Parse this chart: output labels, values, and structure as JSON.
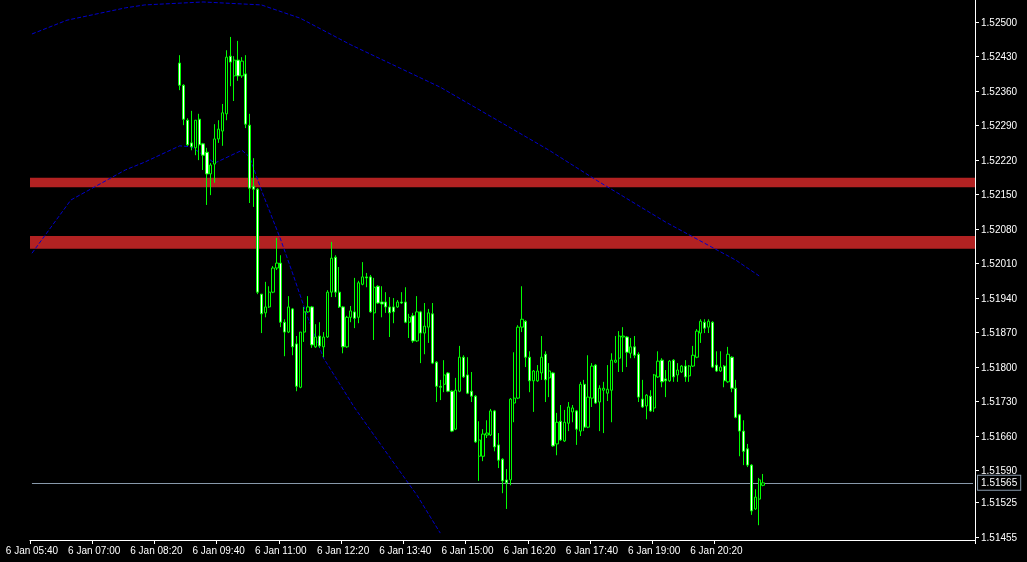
{
  "chart_data": {
    "type": "candlestick",
    "color": "#00ff00",
    "categories": [
      "6 Jan 05:40",
      null,
      null,
      null,
      null,
      null,
      null,
      null,
      null,
      null,
      null,
      null,
      null,
      null,
      null,
      null,
      "6 Jan 07:00",
      null,
      null,
      null,
      null,
      null,
      null,
      null,
      null,
      null,
      null,
      null,
      null,
      null,
      null,
      null,
      "6 Jan 08:20",
      null,
      null,
      null,
      null,
      null,
      null,
      null,
      null,
      null,
      null,
      null,
      null,
      null,
      null,
      null,
      "6 Jan 09:40",
      null,
      null,
      null,
      null,
      null,
      null,
      null,
      null,
      null,
      null,
      null,
      null,
      null,
      null,
      null,
      "6 Jan 11:00",
      null,
      null,
      null,
      null,
      null,
      null,
      null,
      null,
      null,
      null,
      null,
      null,
      null,
      null,
      null,
      "6 Jan 12:20",
      null,
      null,
      null,
      null,
      null,
      null,
      null,
      null,
      null,
      null,
      null,
      null,
      null,
      null,
      null,
      "6 Jan 13:40",
      null,
      null,
      null,
      null,
      null,
      null,
      null,
      null,
      null,
      null,
      null,
      null,
      null,
      null,
      null,
      "6 Jan 15:00",
      null,
      null,
      null,
      null,
      null,
      null,
      null,
      null,
      null,
      null,
      null,
      null,
      null,
      null,
      null,
      "6 Jan 16:20",
      null,
      null,
      null,
      null,
      null,
      null,
      null,
      null,
      null,
      null,
      null,
      null,
      null,
      null,
      null,
      "6 Jan 17:40",
      null,
      null,
      null,
      null,
      null,
      null,
      null,
      null,
      null,
      null,
      null,
      null,
      null,
      null,
      null,
      "6 Jan 19:00",
      null,
      null,
      null,
      null,
      null,
      null,
      null,
      null,
      null,
      null,
      null,
      null,
      null,
      null,
      null,
      "6 Jan 20:20",
      null,
      null,
      null,
      null,
      null,
      null,
      null,
      null,
      null,
      null,
      null,
      null,
      null,
      null,
      null,
      null,
      null,
      null,
      null,
      null,
      null,
      null,
      null,
      null,
      null,
      null,
      null,
      null,
      null,
      null,
      null,
      null,
      null,
      null,
      null,
      null,
      null,
      null,
      null,
      null,
      null,
      null,
      null,
      null,
      null,
      null,
      null,
      null,
      null,
      null,
      null,
      null,
      null,
      null,
      null,
      null,
      null,
      null,
      null,
      null,
      null,
      null,
      null,
      null,
      null,
      null
    ],
    "ohlc": [
      null,
      null,
      null,
      null,
      null,
      null,
      null,
      null,
      null,
      null,
      null,
      null,
      null,
      null,
      null,
      null,
      null,
      null,
      null,
      null,
      null,
      null,
      null,
      null,
      null,
      null,
      null,
      null,
      null,
      null,
      null,
      null,
      null,
      null,
      null,
      null,
      null,
      null,
      [
        1.52417,
        1.52433,
        1.52362,
        1.52372
      ],
      [
        1.52372,
        1.52374,
        1.52291,
        1.52303
      ],
      [
        1.52301,
        1.52305,
        1.52249,
        1.52251
      ],
      [
        1.52255,
        1.5232,
        1.5224,
        1.52247
      ],
      [
        1.52245,
        1.52301,
        1.5223,
        1.52301
      ],
      [
        1.52303,
        1.52314,
        1.5222,
        1.52251
      ],
      [
        1.52253,
        1.52255,
        1.522,
        1.5223
      ],
      [
        1.52236,
        1.52245,
        1.52129,
        1.52192
      ],
      [
        1.52192,
        1.52214,
        1.52149,
        1.5221
      ],
      [
        1.52212,
        1.52293,
        1.52174,
        1.52263
      ],
      [
        1.52263,
        1.52301,
        1.52255,
        1.52283
      ],
      [
        1.52279,
        1.52334,
        1.52249,
        1.52316
      ],
      [
        1.52314,
        1.52443,
        1.52301,
        1.52429
      ],
      [
        1.52431,
        1.5247,
        1.5237,
        1.52419
      ],
      [
        1.52391,
        1.52431,
        1.5234,
        1.52423
      ],
      [
        1.52423,
        1.52462,
        1.52381,
        1.52391
      ],
      [
        1.52391,
        1.52429,
        1.52387,
        1.52421
      ],
      [
        1.52395,
        1.52433,
        1.52285,
        1.52293
      ],
      [
        1.52291,
        1.52314,
        1.52133,
        1.52163
      ],
      [
        1.52167,
        1.52224,
        1.52125,
        1.52161
      ],
      [
        1.52161,
        1.52163,
        1.51948,
        1.51952
      ],
      [
        1.51948,
        1.51948,
        1.51869,
        1.51908
      ],
      [
        1.5191,
        1.51973,
        1.51901,
        1.51922
      ],
      [
        1.51922,
        1.51964,
        1.5192,
        1.51952
      ],
      [
        1.51952,
        1.52005,
        1.5195,
        1.52001
      ],
      [
        1.52001,
        1.52062,
        1.51997,
        1.52011
      ],
      [
        1.52011,
        1.52027,
        1.51881,
        1.51891
      ],
      [
        1.51891,
        1.51897,
        1.51822,
        1.51871
      ],
      [
        1.51871,
        1.51944,
        1.51869,
        1.51922
      ],
      [
        1.51918,
        1.5192,
        1.51824,
        1.51841
      ],
      [
        1.51847,
        1.51863,
        1.51751,
        1.51761
      ],
      [
        1.51759,
        1.51871,
        1.51757,
        1.51871
      ],
      [
        1.51871,
        1.51922,
        1.51851,
        1.51912
      ],
      [
        1.51912,
        1.51944,
        1.5191,
        1.51922
      ],
      [
        1.51922,
        1.51924,
        1.51839,
        1.51845
      ],
      [
        1.51841,
        1.51887,
        1.51839,
        1.51861
      ],
      [
        1.51863,
        1.51891,
        1.51839,
        1.51843
      ],
      [
        1.51841,
        1.51871,
        1.5182,
        1.51861
      ],
      [
        1.51861,
        1.51956,
        1.51859,
        1.51952
      ],
      [
        1.51952,
        1.52054,
        1.51942,
        1.52021
      ],
      [
        1.52023,
        1.52027,
        1.51942,
        1.51952
      ],
      [
        1.51952,
        1.52003,
        1.5192,
        1.51922
      ],
      [
        1.51922,
        1.51924,
        1.51828,
        1.51841
      ],
      [
        1.51841,
        1.51904,
        1.51839,
        1.51901
      ],
      [
        1.51901,
        1.51924,
        1.51891,
        1.51914
      ],
      [
        1.51912,
        1.51981,
        1.51879,
        1.51899
      ],
      [
        1.51901,
        1.51975,
        1.51889,
        1.51971
      ],
      [
        1.51968,
        1.52013,
        1.51966,
        1.51983
      ],
      [
        1.51983,
        1.51991,
        1.51962,
        1.51981
      ],
      [
        1.51983,
        1.51987,
        1.5191,
        1.51912
      ],
      [
        1.5191,
        1.51981,
        1.51855,
        1.51962
      ],
      [
        1.51964,
        1.51966,
        1.51928,
        1.5193
      ],
      [
        1.51932,
        1.51964,
        1.51901,
        1.51928
      ],
      [
        1.51932,
        1.51952,
        1.5191,
        1.51922
      ],
      [
        1.51922,
        1.51942,
        1.51861,
        1.5191
      ],
      [
        1.51922,
        1.5194,
        1.51889,
        1.51912
      ],
      [
        1.51922,
        1.51936,
        1.5192,
        1.51932
      ],
      [
        1.51932,
        1.51952,
        1.51928,
        1.5193
      ],
      [
        1.51932,
        1.51962,
        1.51889,
        1.51891
      ],
      [
        1.51891,
        1.51908,
        1.51859,
        1.51901
      ],
      [
        1.51904,
        1.5191,
        1.51849,
        1.51853
      ],
      [
        1.51853,
        1.51944,
        1.51851,
        1.51912
      ],
      [
        1.51912,
        1.51914,
        1.51808,
        1.51869
      ],
      [
        1.51869,
        1.5193,
        1.51826,
        1.51883
      ],
      [
        1.51881,
        1.51918,
        1.51849,
        1.5191
      ],
      [
        1.51908,
        1.5193,
        1.51806,
        1.51808
      ],
      [
        1.5181,
        1.51812,
        1.51729,
        1.51761
      ],
      [
        1.51761,
        1.51774,
        1.51733,
        1.51759
      ],
      [
        1.51765,
        1.51814,
        1.51749,
        1.51784
      ],
      [
        1.51788,
        1.5179,
        1.51749,
        1.51751
      ],
      [
        1.51751,
        1.51753,
        1.51668,
        1.5167
      ],
      [
        1.51674,
        1.51778,
        1.51672,
        1.51753
      ],
      [
        1.51751,
        1.51843,
        1.51749,
        1.5182
      ],
      [
        1.5182,
        1.51824,
        1.51778,
        1.5178
      ],
      [
        1.51784,
        1.5182,
        1.51745,
        1.51747
      ],
      [
        1.51751,
        1.5179,
        1.51729,
        1.51741
      ],
      [
        1.51741,
        1.51743,
        1.51646,
        1.51648
      ],
      [
        1.51619,
        1.5169,
        1.51569,
        1.51652
      ],
      [
        1.51619,
        1.51674,
        1.51609,
        1.51664
      ],
      [
        1.51662,
        1.51692,
        1.51656,
        1.51666
      ],
      [
        1.51662,
        1.51715,
        1.5166,
        1.51711
      ],
      [
        1.51711,
        1.51713,
        1.51629,
        1.51638
      ],
      [
        1.51642,
        1.51666,
        1.51595,
        1.51611
      ],
      [
        1.51613,
        1.51615,
        1.51544,
        1.51569
      ],
      [
        1.51571,
        1.51593,
        1.51512,
        1.51565
      ],
      [
        1.51571,
        1.51737,
        1.5156,
        1.51735
      ],
      [
        1.51727,
        1.5183,
        1.51688,
        1.51737
      ],
      [
        1.51737,
        1.51885,
        1.51735,
        1.51881
      ],
      [
        1.51881,
        1.51964,
        1.51871,
        1.51897
      ],
      [
        1.51893,
        1.51895,
        1.518,
        1.5182
      ],
      [
        1.5182,
        1.51832,
        1.51749,
        1.51772
      ],
      [
        1.51772,
        1.51794,
        1.51709,
        1.51792
      ],
      [
        1.51772,
        1.51804,
        1.5177,
        1.51792
      ],
      [
        1.51788,
        1.51863,
        1.51774,
        1.5182
      ],
      [
        1.51826,
        1.51832,
        1.51729,
        1.51774
      ],
      [
        1.51778,
        1.51808,
        1.51739,
        1.51792
      ],
      [
        1.51788,
        1.5179,
        1.51638,
        1.5164
      ],
      [
        1.51644,
        1.51707,
        1.51621,
        1.51688
      ],
      [
        1.5169,
        1.51723,
        1.5165,
        1.51652
      ],
      [
        1.5165,
        1.51713,
        1.51648,
        1.51688
      ],
      [
        1.51686,
        1.51729,
        1.5167,
        1.51719
      ],
      [
        1.51709,
        1.51723,
        1.51688,
        1.51717
      ],
      [
        1.51711,
        1.51713,
        1.51642,
        1.51674
      ],
      [
        1.5167,
        1.5177,
        1.5166,
        1.51765
      ],
      [
        1.51765,
        1.51774,
        1.5167,
        1.51678
      ],
      [
        1.51678,
        1.51824,
        1.51676,
        1.51739
      ],
      [
        1.51737,
        1.51808,
        1.51719,
        1.51802
      ],
      [
        1.51804,
        1.51806,
        1.51725,
        1.51727
      ],
      [
        1.51729,
        1.51763,
        1.5167,
        1.51757
      ],
      [
        1.51753,
        1.5177,
        1.51666,
        1.51757
      ],
      [
        1.51747,
        1.51804,
        1.51731,
        1.51755
      ],
      [
        1.51753,
        1.51828,
        1.51688,
        1.51814
      ],
      [
        1.5181,
        1.51863,
        1.51808,
        1.51814
      ],
      [
        1.51818,
        1.51873,
        1.5179,
        1.51863
      ],
      [
        1.51861,
        1.51881,
        1.5179,
        1.51863
      ],
      [
        1.51861,
        1.51863,
        1.518,
        1.5183
      ],
      [
        1.51828,
        1.51859,
        1.51818,
        1.51841
      ],
      [
        1.51841,
        1.51863,
        1.51818,
        1.51824
      ],
      [
        1.51826,
        1.5183,
        1.51729,
        1.51739
      ],
      [
        1.51735,
        1.51774,
        1.51717,
        1.51719
      ],
      [
        1.51721,
        1.51745,
        1.51694,
        1.51743
      ],
      [
        1.51741,
        1.51753,
        1.51709,
        1.51711
      ],
      [
        1.51717,
        1.51786,
        1.51709,
        1.51784
      ],
      [
        1.5178,
        1.51832,
        1.51778,
        1.51812
      ],
      [
        1.51814,
        1.51818,
        1.51759,
        1.5177
      ],
      [
        1.51776,
        1.51794,
        1.51739,
        1.51772
      ],
      [
        1.51772,
        1.51814,
        1.5177,
        1.51812
      ],
      [
        1.51814,
        1.51816,
        1.5177,
        1.5178
      ],
      [
        1.51784,
        1.51808,
        1.5177,
        1.51794
      ],
      [
        1.5179,
        1.51804,
        1.51788,
        1.51802
      ],
      [
        1.51802,
        1.51814,
        1.5177,
        1.5178
      ],
      [
        1.51782,
        1.51804,
        1.5177,
        1.51802
      ],
      [
        1.51802,
        1.51843,
        1.518,
        1.51824
      ],
      [
        1.5182,
        1.51877,
        1.51818,
        1.51873
      ],
      [
        1.51869,
        1.51897,
        1.51849,
        1.51893
      ],
      [
        1.51891,
        1.51897,
        1.51869,
        1.51879
      ],
      [
        1.51881,
        1.51897,
        1.51869,
        1.51893
      ],
      [
        1.51891,
        1.51893,
        1.51798,
        1.518
      ],
      [
        1.51804,
        1.51832,
        1.5179,
        1.51792
      ],
      [
        1.51792,
        1.51832,
        1.5179,
        1.518
      ],
      [
        1.51802,
        1.51804,
        1.51759,
        1.51772
      ],
      [
        1.5177,
        1.51841,
        1.51768,
        1.51826
      ],
      [
        1.5182,
        1.51822,
        1.51749,
        1.51757
      ],
      [
        1.51757,
        1.51774,
        1.51696,
        1.51698
      ],
      [
        1.51703,
        1.51705,
        1.51619,
        1.5167
      ],
      [
        1.5167,
        1.51692,
        1.51601,
        1.51629
      ],
      [
        1.51634,
        1.51644,
        1.51597,
        1.51601
      ],
      [
        1.51601,
        1.51603,
        1.515,
        1.51508
      ],
      [
        1.51512,
        1.51552,
        1.5151,
        1.51536
      ],
      [
        1.51532,
        1.51575,
        1.51479,
        1.51571
      ],
      [
        1.5156,
        1.51583,
        1.51558,
        1.51565
      ],
      null,
      null,
      null,
      null,
      null,
      null,
      null,
      null,
      null,
      null,
      null,
      null,
      null,
      null,
      null,
      null,
      null,
      null,
      null,
      null,
      null,
      null,
      null,
      null,
      null,
      null,
      null,
      null,
      null,
      null,
      null,
      null,
      null,
      null,
      null,
      null,
      null,
      null,
      null,
      null,
      null,
      null,
      null,
      null,
      null,
      null,
      null,
      null,
      null,
      null,
      null,
      null,
      null,
      null
    ],
    "series": [
      {
        "type": "line",
        "color": "#0000cc",
        "values": [
          1.52476,
          null,
          null,
          null,
          null,
          null,
          null,
          null,
          null,
          1.52504,
          null,
          null,
          null,
          null,
          null,
          null,
          null,
          null,
          null,
          null,
          null,
          null,
          null,
          null,
          1.52529,
          null,
          null,
          null,
          null,
          1.52535,
          null,
          null,
          null,
          null,
          null,
          null,
          null,
          null,
          null,
          null,
          null,
          null,
          null,
          null,
          1.52541,
          null,
          null,
          null,
          null,
          null,
          null,
          null,
          null,
          null,
          null,
          null,
          null,
          null,
          null,
          1.52535,
          null,
          null,
          null,
          null,
          null,
          null,
          null,
          null,
          null,
          1.52508,
          null,
          null,
          null,
          null,
          null,
          null,
          null,
          null,
          null,
          null,
          null,
          null,
          1.52454,
          null,
          null,
          null,
          null,
          null,
          null,
          null,
          null,
          null,
          null,
          null,
          null,
          null,
          null,
          null,
          null,
          null,
          null,
          null,
          null,
          null,
          null,
          1.52368,
          null,
          null,
          null,
          null,
          null,
          null,
          null,
          null,
          null,
          null,
          null,
          null,
          null,
          null,
          null,
          null,
          null,
          null,
          null,
          null,
          null,
          null,
          null,
          null,
          null,
          null,
          null,
          1.5224,
          null,
          null,
          null,
          null,
          null,
          null,
          null,
          null,
          null,
          null,
          null,
          1.5218,
          null,
          null,
          null,
          null,
          null,
          null,
          null,
          null,
          null,
          null,
          null,
          null,
          null,
          null,
          null,
          null,
          null,
          1.52094,
          null,
          null,
          null,
          null,
          null,
          null,
          null,
          null,
          null,
          null,
          null,
          null,
          null,
          null,
          null,
          null,
          null,
          1.52017,
          null,
          null,
          null,
          null,
          null,
          1.51985,
          null,
          null,
          null,
          null,
          null,
          null,
          null,
          null,
          null,
          null,
          null,
          null,
          null,
          null,
          null,
          null,
          null,
          null,
          null,
          null,
          null,
          null,
          null,
          null,
          null,
          null,
          null,
          null,
          null,
          null,
          null,
          null,
          null,
          null,
          null,
          null,
          null,
          null,
          null,
          null,
          null,
          null,
          null,
          null,
          null,
          null,
          null,
          null,
          null,
          null,
          null,
          null,
          null,
          null,
          null
        ]
      },
      {
        "type": "line",
        "color": "#0000cc",
        "values": [
          1.52031,
          null,
          null,
          null,
          null,
          null,
          null,
          null,
          null,
          null,
          1.52139,
          null,
          null,
          null,
          null,
          null,
          null,
          null,
          null,
          null,
          null,
          null,
          null,
          null,
          1.522,
          null,
          null,
          null,
          null,
          1.52216,
          null,
          null,
          null,
          null,
          null,
          null,
          null,
          null,
          1.52249,
          null,
          null,
          1.52247,
          null,
          null,
          null,
          null,
          null,
          1.52214,
          null,
          null,
          null,
          null,
          null,
          null,
          1.5224,
          null,
          1.52226,
          null,
          null,
          1.52159,
          null,
          null,
          null,
          null,
          1.52058,
          null,
          null,
          1.51991,
          null,
          null,
          null,
          1.51899,
          null,
          null,
          null,
          1.51818,
          null,
          null,
          null,
          null,
          null,
          null,
          null,
          1.51717,
          null,
          null,
          null,
          null,
          null,
          null,
          null,
          null,
          1.51617,
          null,
          null,
          null,
          null,
          null,
          null,
          1.5154,
          null,
          null,
          null,
          null,
          null,
          1.51463,
          null,
          null,
          null,
          null,
          null,
          null,
          null,
          null,
          null,
          null,
          null,
          null,
          null,
          null,
          null,
          null,
          null,
          null,
          null,
          null,
          null,
          null,
          null,
          null,
          null,
          null,
          null,
          null,
          null,
          null,
          null,
          null,
          null,
          null,
          null,
          null,
          null,
          null,
          null,
          null,
          null,
          null,
          null,
          null,
          null,
          null,
          null,
          null,
          null,
          null,
          null,
          null,
          null,
          null,
          null,
          null,
          null,
          null,
          null,
          null,
          null,
          null,
          null,
          null,
          null,
          null,
          null,
          null,
          null,
          null,
          null,
          null,
          null,
          null,
          null,
          null,
          null,
          null,
          null,
          null,
          null,
          null,
          null,
          null,
          null,
          null,
          null,
          null,
          null,
          null,
          null,
          null,
          null,
          null,
          null,
          null,
          null,
          null,
          null,
          null,
          null,
          null,
          null,
          null,
          null,
          null,
          null,
          null,
          null,
          null,
          null,
          null,
          null,
          null,
          null,
          null,
          null,
          null,
          null,
          null,
          null,
          null,
          null,
          null,
          null,
          null,
          null,
          null,
          null,
          null,
          null,
          null,
          null,
          null,
          null,
          null,
          null
        ]
      }
    ],
    "line_style": "dashed",
    "marker": "none",
    "ylim": [
      1.51449,
      1.52545
    ],
    "yticks": [
      {
        "value": 1.525,
        "label": "1.52500"
      },
      {
        "value": 1.5243,
        "label": "1.52430"
      },
      {
        "value": 1.5236,
        "label": "1.52360"
      },
      {
        "value": 1.5229,
        "label": "1.52290"
      },
      {
        "value": 1.5222,
        "label": "1.52220"
      },
      {
        "value": 1.5215,
        "label": "1.52150"
      },
      {
        "value": 1.5208,
        "label": "1.52080"
      },
      {
        "value": 1.5201,
        "label": "1.52010"
      },
      {
        "value": 1.5194,
        "label": "1.51940"
      },
      {
        "value": 1.5187,
        "label": "1.51870"
      },
      {
        "value": 1.518,
        "label": "1.51800"
      },
      {
        "value": 1.5173,
        "label": "1.51730"
      },
      {
        "value": 1.5166,
        "label": "1.51660"
      },
      {
        "value": 1.5159,
        "label": "1.51590"
      },
      {
        "value": 1.51525,
        "label": "1.51525"
      },
      {
        "value": 1.51455,
        "label": "1.51455"
      }
    ],
    "bands": [
      {
        "axis": "y",
        "from": 1.52165,
        "to": 1.52184,
        "color": "#b22222"
      },
      {
        "axis": "y",
        "from": 1.5204,
        "to": 1.52066,
        "color": "#b22222"
      }
    ],
    "ref_lines": [
      {
        "axis": "y",
        "value": 1.51565,
        "label": "1.51565",
        "color": "#8899aa"
      }
    ],
    "grid": false
  }
}
